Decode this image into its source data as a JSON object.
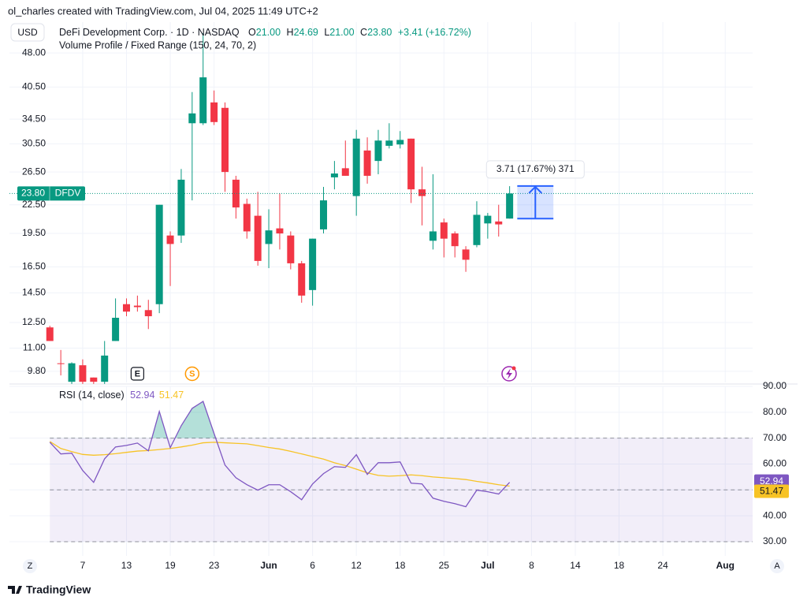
{
  "header": {
    "caption": "ol_charles created with TradingView.com, Jul 04, 2025 11:49 UTC+2",
    "currency": "USD",
    "footer": "TradingView",
    "left_button": "Z",
    "right_button": "A"
  },
  "chart_data": [
    {
      "type": "candlestick",
      "title": "DeFi Development Corp. · 1D · NASDAQ",
      "ohlc_legend": [
        {
          "key": "O",
          "value": "21.00"
        },
        {
          "key": "H",
          "value": "24.69"
        },
        {
          "key": "L",
          "value": "21.00"
        },
        {
          "key": "C",
          "value": "23.80"
        }
      ],
      "change": "+3.41 (+16.72%)",
      "indicator": "Volume Profile / Fixed Range (150, 24, 70, 2)",
      "log_scale": true,
      "grid": true,
      "up_color": "#089981",
      "down_color": "#f23645",
      "xlim": [
        -3.69,
        64.2
      ],
      "ylim": [
        9.27,
        56
      ],
      "yticks": [
        {
          "value": 48,
          "label": "48.00"
        },
        {
          "value": 40.5,
          "label": "40.50"
        },
        {
          "value": 34.5,
          "label": "34.50"
        },
        {
          "value": 30.5,
          "label": "30.50"
        },
        {
          "value": 26.5,
          "label": "26.50"
        },
        {
          "value": 22.5,
          "label": "22.50"
        },
        {
          "value": 19.5,
          "label": "19.50"
        },
        {
          "value": 16.5,
          "label": "16.50"
        },
        {
          "value": 14.5,
          "label": "14.50"
        },
        {
          "value": 12.5,
          "label": "12.50"
        },
        {
          "value": 11,
          "label": "11.00"
        },
        {
          "value": 9.8,
          "label": "9.80"
        }
      ],
      "x": [
        0,
        1,
        2,
        3,
        4,
        5,
        6,
        7,
        8,
        9,
        10,
        11,
        12,
        13,
        14,
        15,
        16,
        17,
        18,
        19,
        20,
        21,
        22,
        23,
        24,
        25,
        26,
        27,
        28,
        29,
        30,
        31,
        32,
        33,
        34,
        35,
        36,
        37,
        38,
        39,
        40,
        41,
        42
      ],
      "open": [
        12.2,
        10.2,
        9.3,
        10.1,
        9.5,
        9.3,
        11.4,
        13.7,
        13.6,
        13.3,
        13.7,
        19.3,
        19.3,
        33.8,
        33.8,
        37.5,
        36.5,
        25.5,
        22.6,
        21.3,
        18.5,
        20.0,
        19.3,
        16.8,
        14.7,
        19.9,
        25.8,
        27.0,
        23.5,
        29.5,
        28.0,
        30.2,
        30.4,
        31.3,
        24.3,
        18.8,
        20.6,
        19.5,
        18.0,
        18.4,
        20.5,
        20.7,
        21.0
      ],
      "high": [
        12.3,
        10.9,
        10.25,
        10.4,
        9.5,
        11.4,
        14.1,
        14.1,
        14.3,
        14.0,
        22.5,
        19.7,
        26.9,
        39.5,
        53.0,
        39.8,
        37.5,
        26.0,
        23.2,
        24.0,
        22.0,
        23.8,
        19.7,
        17.0,
        19.0,
        24.6,
        28.0,
        31.0,
        32.7,
        31.5,
        32.7,
        33.8,
        32.5,
        31.3,
        27.2,
        26.2,
        21.0,
        19.7,
        18.3,
        22.9,
        21.6,
        22.5,
        24.69
      ],
      "low": [
        11.4,
        9.6,
        9.2,
        9.2,
        9.2,
        9.2,
        11.4,
        12.9,
        13.2,
        12.1,
        13.1,
        15.0,
        18.6,
        23.0,
        33.5,
        33.5,
        24.0,
        21.0,
        19.0,
        16.6,
        16.4,
        18.0,
        16.3,
        13.8,
        13.6,
        19.5,
        24.3,
        26.0,
        21.3,
        25.0,
        26.2,
        29.8,
        29.8,
        22.7,
        20.3,
        18.0,
        17.3,
        17.3,
        16.1,
        18.2,
        19.0,
        19.2,
        21.0
      ],
      "close": [
        11.4,
        10.18,
        10.2,
        9.3,
        9.3,
        10.6,
        12.8,
        13.2,
        13.5,
        12.9,
        22.5,
        18.5,
        25.5,
        35.5,
        42.5,
        34.0,
        26.5,
        22.2,
        19.7,
        17.0,
        19.8,
        19.5,
        16.8,
        14.3,
        19.0,
        23.0,
        26.3,
        26.0,
        31.3,
        26.0,
        31.0,
        31.0,
        31.1,
        24.3,
        23.5,
        19.7,
        19.0,
        18.3,
        17.1,
        21.4,
        21.3,
        20.4,
        23.8
      ],
      "last_price": {
        "value": 23.8,
        "label": "23.80",
        "symbol": "DFDV",
        "color": "#089981"
      },
      "measure": {
        "x": [
          42.7,
          46.0
        ],
        "y": [
          21.0,
          24.71
        ],
        "label": "3.71 (17.67%) 371",
        "color": "#2962ff"
      },
      "events": [
        {
          "label": "E",
          "x": 8
        },
        {
          "label": "S",
          "x": 13
        }
      ]
    },
    {
      "type": "line",
      "title": "RSI (14, close)",
      "grid": true,
      "xlim": [
        -3.69,
        64.2
      ],
      "xticks": [
        {
          "value": 3,
          "label": "7"
        },
        {
          "value": 7,
          "label": "13"
        },
        {
          "value": 11,
          "label": "19"
        },
        {
          "value": 15,
          "label": "23"
        },
        {
          "value": 20,
          "label": "Jun"
        },
        {
          "value": 24,
          "label": "6"
        },
        {
          "value": 28,
          "label": "12"
        },
        {
          "value": 32,
          "label": "18"
        },
        {
          "value": 36,
          "label": "25"
        },
        {
          "value": 40,
          "label": "Jul"
        },
        {
          "value": 44,
          "label": "8"
        },
        {
          "value": 48,
          "label": "14"
        },
        {
          "value": 52,
          "label": "18"
        },
        {
          "value": 56,
          "label": "24"
        },
        {
          "value": 61.7,
          "label": "Aug"
        }
      ],
      "ylim": [
        24.5,
        90
      ],
      "yticks": [
        {
          "value": 90,
          "label": "90.00"
        },
        {
          "value": 80,
          "label": "80.00"
        },
        {
          "value": 70,
          "label": "70.00"
        },
        {
          "value": 60,
          "label": "60.00"
        },
        {
          "value": 50,
          "label": "50.00"
        },
        {
          "value": 40,
          "label": "40.00"
        },
        {
          "value": 30,
          "label": "30.00"
        }
      ],
      "bands": {
        "upper": 70,
        "middle": 50,
        "lower": 30
      },
      "x": [
        0,
        1,
        2,
        3,
        4,
        5,
        6,
        7,
        8,
        9,
        10,
        11,
        12,
        13,
        14,
        15,
        16,
        17,
        18,
        19,
        20,
        21,
        22,
        23,
        24,
        25,
        26,
        27,
        28,
        29,
        30,
        31,
        32,
        33,
        34,
        35,
        36,
        37,
        38,
        39,
        40,
        41,
        42
      ],
      "series": [
        {
          "color": "#7e57c2",
          "last_label": "52.94",
          "values": [
            68.4,
            63.9,
            64.2,
            57.5,
            52.9,
            62.0,
            66.6,
            67.2,
            68.1,
            65.1,
            80.3,
            66.3,
            74.8,
            81.5,
            84.2,
            71.8,
            59.6,
            54.7,
            52.0,
            49.9,
            52.0,
            52.0,
            49.3,
            46.2,
            52.3,
            56.3,
            59.0,
            58.7,
            63.6,
            56.0,
            60.5,
            60.5,
            60.8,
            52.6,
            52.3,
            46.8,
            45.6,
            44.7,
            43.5,
            49.9,
            49.3,
            48.4,
            52.94
          ]
        },
        {
          "color": "#f7c325",
          "last_label": "51.47",
          "values": [
            68.7,
            66.0,
            64.8,
            63.7,
            63.4,
            63.6,
            64.0,
            64.5,
            65.0,
            65.2,
            65.6,
            66.0,
            66.6,
            67.3,
            68.2,
            68.4,
            68.2,
            68.0,
            67.8,
            67.1,
            66.4,
            65.8,
            64.9,
            63.9,
            62.9,
            61.9,
            60.5,
            59.4,
            58.0,
            56.6,
            55.6,
            55.3,
            55.5,
            55.8,
            55.5,
            55.0,
            54.7,
            54.4,
            54.0,
            53.3,
            52.7,
            52.0,
            51.47
          ]
        }
      ]
    }
  ]
}
